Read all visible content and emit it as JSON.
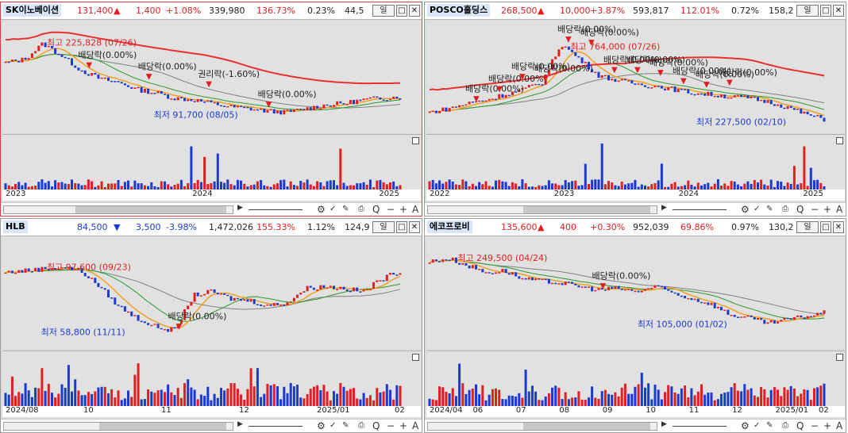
{
  "panels": [
    {
      "name": "SK이노베이션",
      "price": "131,400",
      "price_arrow": "▲",
      "change": "1,400",
      "change_pct": "+1.08%",
      "volume": "339,980",
      "volume_ratio": "136.73%",
      "turnover": "0.23%",
      "trade_value": "44,5",
      "period": "일",
      "direction": "up",
      "high_label": "최고 225,828 (07/26)",
      "low_label": "최저 91,700 (08/05)",
      "annotations": [
        "배당락(0.00%)",
        "배당락(0.00%)",
        "권리락(-1.60%)",
        "배당락(0.00%)"
      ],
      "x_labels": [
        "2023",
        "2024",
        "2025"
      ],
      "trend": [
        0.7,
        0.74,
        0.92,
        0.78,
        0.62,
        0.52,
        0.48,
        0.4,
        0.36,
        0.3,
        0.28,
        0.24,
        0.2,
        0.18,
        0.15,
        0.14,
        0.18,
        0.22,
        0.24,
        0.28,
        0.3,
        0.32
      ]
    },
    {
      "name": "POSCO홀딩스",
      "price": "268,500",
      "price_arrow": "▲",
      "change": "10,000",
      "change_pct": "+3.87%",
      "volume": "593,817",
      "volume_ratio": "112.01%",
      "turnover": "0.72%",
      "trade_value": "158,2",
      "period": "일",
      "direction": "up",
      "high_label": "최고 764,000 (07/26)",
      "low_label": "최저 227,500 (02/10)",
      "annotations": [
        "배당락(0.00%)",
        "배당락(0.00%)",
        "배당락(0.00%)",
        "배당락(0.00%)",
        "배당락(0.00%)",
        "배당락(0.00%)",
        "배당락(0.00%)",
        "배당락(0.00%)",
        "배당락(0.00%)",
        "배당락(0.00%)",
        "배당락(0.00%)",
        "배당락(0.00%)"
      ],
      "x_labels": [
        "2022",
        "2023",
        "2024",
        "2025"
      ],
      "trend": [
        0.14,
        0.18,
        0.24,
        0.28,
        0.34,
        0.4,
        0.48,
        0.92,
        0.74,
        0.56,
        0.5,
        0.46,
        0.44,
        0.4,
        0.36,
        0.34,
        0.32,
        0.3,
        0.26,
        0.2,
        0.12,
        0.06
      ]
    },
    {
      "name": "HLB",
      "price": "84,500",
      "price_arrow": "▼",
      "change": "3,500",
      "change_pct": "-3.98%",
      "volume": "1,472,026",
      "volume_ratio": "155.33%",
      "turnover": "1.12%",
      "trade_value": "124,9",
      "period": "일",
      "direction": "down",
      "high_label": "최고 97,600 (09/23)",
      "low_label": "최저 58,800 (11/11)",
      "annotations": [
        "배당락(0.00%)"
      ],
      "x_labels": [
        "2024/08",
        "10",
        "11",
        "12",
        "2025/01",
        "02"
      ],
      "trend": [
        0.78,
        0.8,
        0.82,
        0.84,
        0.8,
        0.62,
        0.4,
        0.26,
        0.16,
        0.12,
        0.52,
        0.56,
        0.48,
        0.46,
        0.4,
        0.44,
        0.6,
        0.62,
        0.6,
        0.56,
        0.7,
        0.8
      ]
    },
    {
      "name": "에코프로비",
      "price": "135,600",
      "price_arrow": "▲",
      "change": "400",
      "change_pct": "+0.30%",
      "volume": "952,039",
      "volume_ratio": "69.86%",
      "turnover": "0.97%",
      "trade_value": "130,2",
      "period": "일",
      "direction": "up",
      "high_label": "최고 249,500 (04/24)",
      "low_label": "최저 105,000 (01/02)",
      "annotations": [
        "배당락(0.00%)"
      ],
      "x_labels": [
        "2024/04",
        "06",
        "07",
        "08",
        "09",
        "10",
        "11",
        "12",
        "2025/01",
        "02"
      ],
      "trend": [
        0.9,
        0.94,
        0.86,
        0.78,
        0.8,
        0.7,
        0.68,
        0.66,
        0.62,
        0.58,
        0.6,
        0.56,
        0.62,
        0.54,
        0.48,
        0.42,
        0.3,
        0.26,
        0.2,
        0.24,
        0.28,
        0.32
      ]
    }
  ],
  "toolbar": {
    "icons": [
      "play-icon",
      "chart-tools-icon",
      "zoom-icon",
      "minus-icon",
      "plus-icon",
      "text-a-icon"
    ],
    "glyphs": [
      "▶",
      "⚙",
      "Q",
      "−",
      "+",
      "A"
    ]
  },
  "colors": {
    "up": "#e02020",
    "down": "#1a3ad0",
    "ma_long": "#e83030",
    "ma_orange": "#f0a020",
    "ma_green": "#2a9a2a",
    "ma_gray": "#808080"
  }
}
